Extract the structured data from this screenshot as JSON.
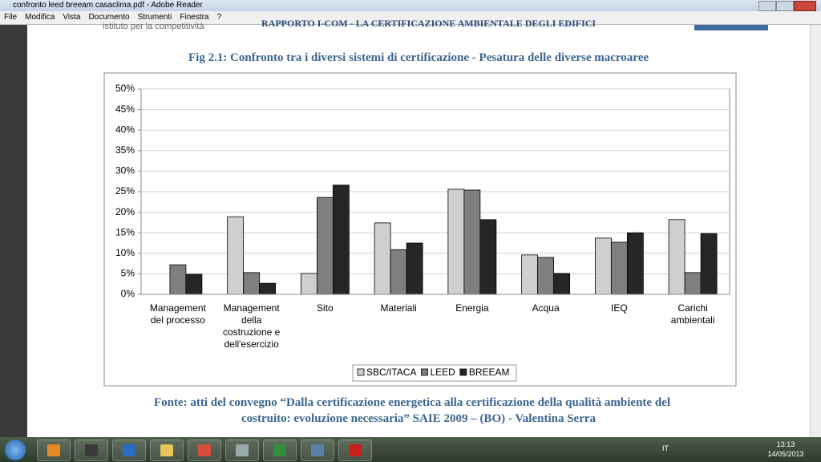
{
  "window": {
    "title": "confronto leed breeam casaclima.pdf - Adobe Reader",
    "menu": [
      "File",
      "Modifica",
      "Vista",
      "Documento",
      "Strumenti",
      "Finestra",
      "?"
    ]
  },
  "document": {
    "header_left": "istituto per la competitività",
    "header_center": "RAPPORTO I-COM - LA CERTIFICAZIONE AMBIENTALE DEGLI EDIFICI",
    "caption": [
      "Fonte: atti del convegno “Dalla certificazione energetica alla certificazione della qualità ambiente del",
      "costruito: evoluzione necessaria” SAIE 2009 – (BO) - Valentina Serra"
    ]
  },
  "chart_data": {
    "type": "bar",
    "title": "Fig 2.1: Confronto tra i diversi sistemi di certificazione - Pesatura delle diverse macroaree",
    "categories": [
      "Management\ndel processo",
      "Management\ndella\ncostruzione e\ndell'esercizio",
      "Sito",
      "Materiali",
      "Energia",
      "Acqua",
      "IEQ",
      "Carichi\nambientali"
    ],
    "series": [
      {
        "name": "SBC/ITACA",
        "color": "#cfcfcf",
        "values": [
          0,
          18.9,
          5.1,
          17.4,
          25.6,
          9.6,
          13.7,
          18.2
        ]
      },
      {
        "name": "LEED",
        "color": "#7f7f7f",
        "values": [
          7.2,
          5.3,
          23.6,
          10.9,
          25.4,
          9.0,
          12.7,
          5.3
        ]
      },
      {
        "name": "BREEAM",
        "color": "#262626",
        "values": [
          4.9,
          2.7,
          26.6,
          12.5,
          18.2,
          5.1,
          15.0,
          14.8
        ]
      }
    ],
    "ylim": [
      0,
      50
    ],
    "yticks": [
      {
        "value": 0,
        "label": "0%"
      },
      {
        "value": 5,
        "label": "5%"
      },
      {
        "value": 10,
        "label": "10%"
      },
      {
        "value": 15,
        "label": "15%"
      },
      {
        "value": 20,
        "label": "20%"
      },
      {
        "value": 25,
        "label": "25%"
      },
      {
        "value": 30,
        "label": "30%"
      },
      {
        "value": 35,
        "label": "35%"
      },
      {
        "value": 40,
        "label": "40%"
      },
      {
        "value": 45,
        "label": "45%"
      },
      {
        "value": 50,
        "label": "50%"
      }
    ],
    "grid": true,
    "legend": "bottom"
  },
  "taskbar": {
    "language": "IT",
    "time": "13:13",
    "date": "14/05/2013"
  }
}
